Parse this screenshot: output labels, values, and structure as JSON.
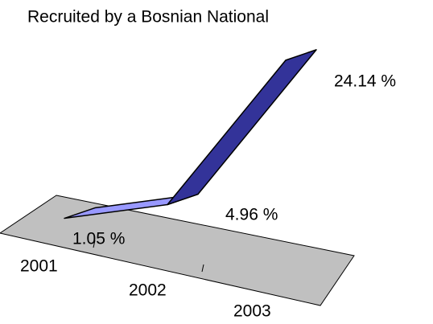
{
  "chart_data": {
    "type": "line3d",
    "title": "Recruited by a Bosnian National",
    "categories": [
      "2001",
      "2002",
      "2003"
    ],
    "values": [
      1.05,
      4.96,
      24.14
    ],
    "value_labels": [
      "1.05 %",
      "4.96 %",
      "24.14 %"
    ],
    "color": "#9999ff"
  }
}
